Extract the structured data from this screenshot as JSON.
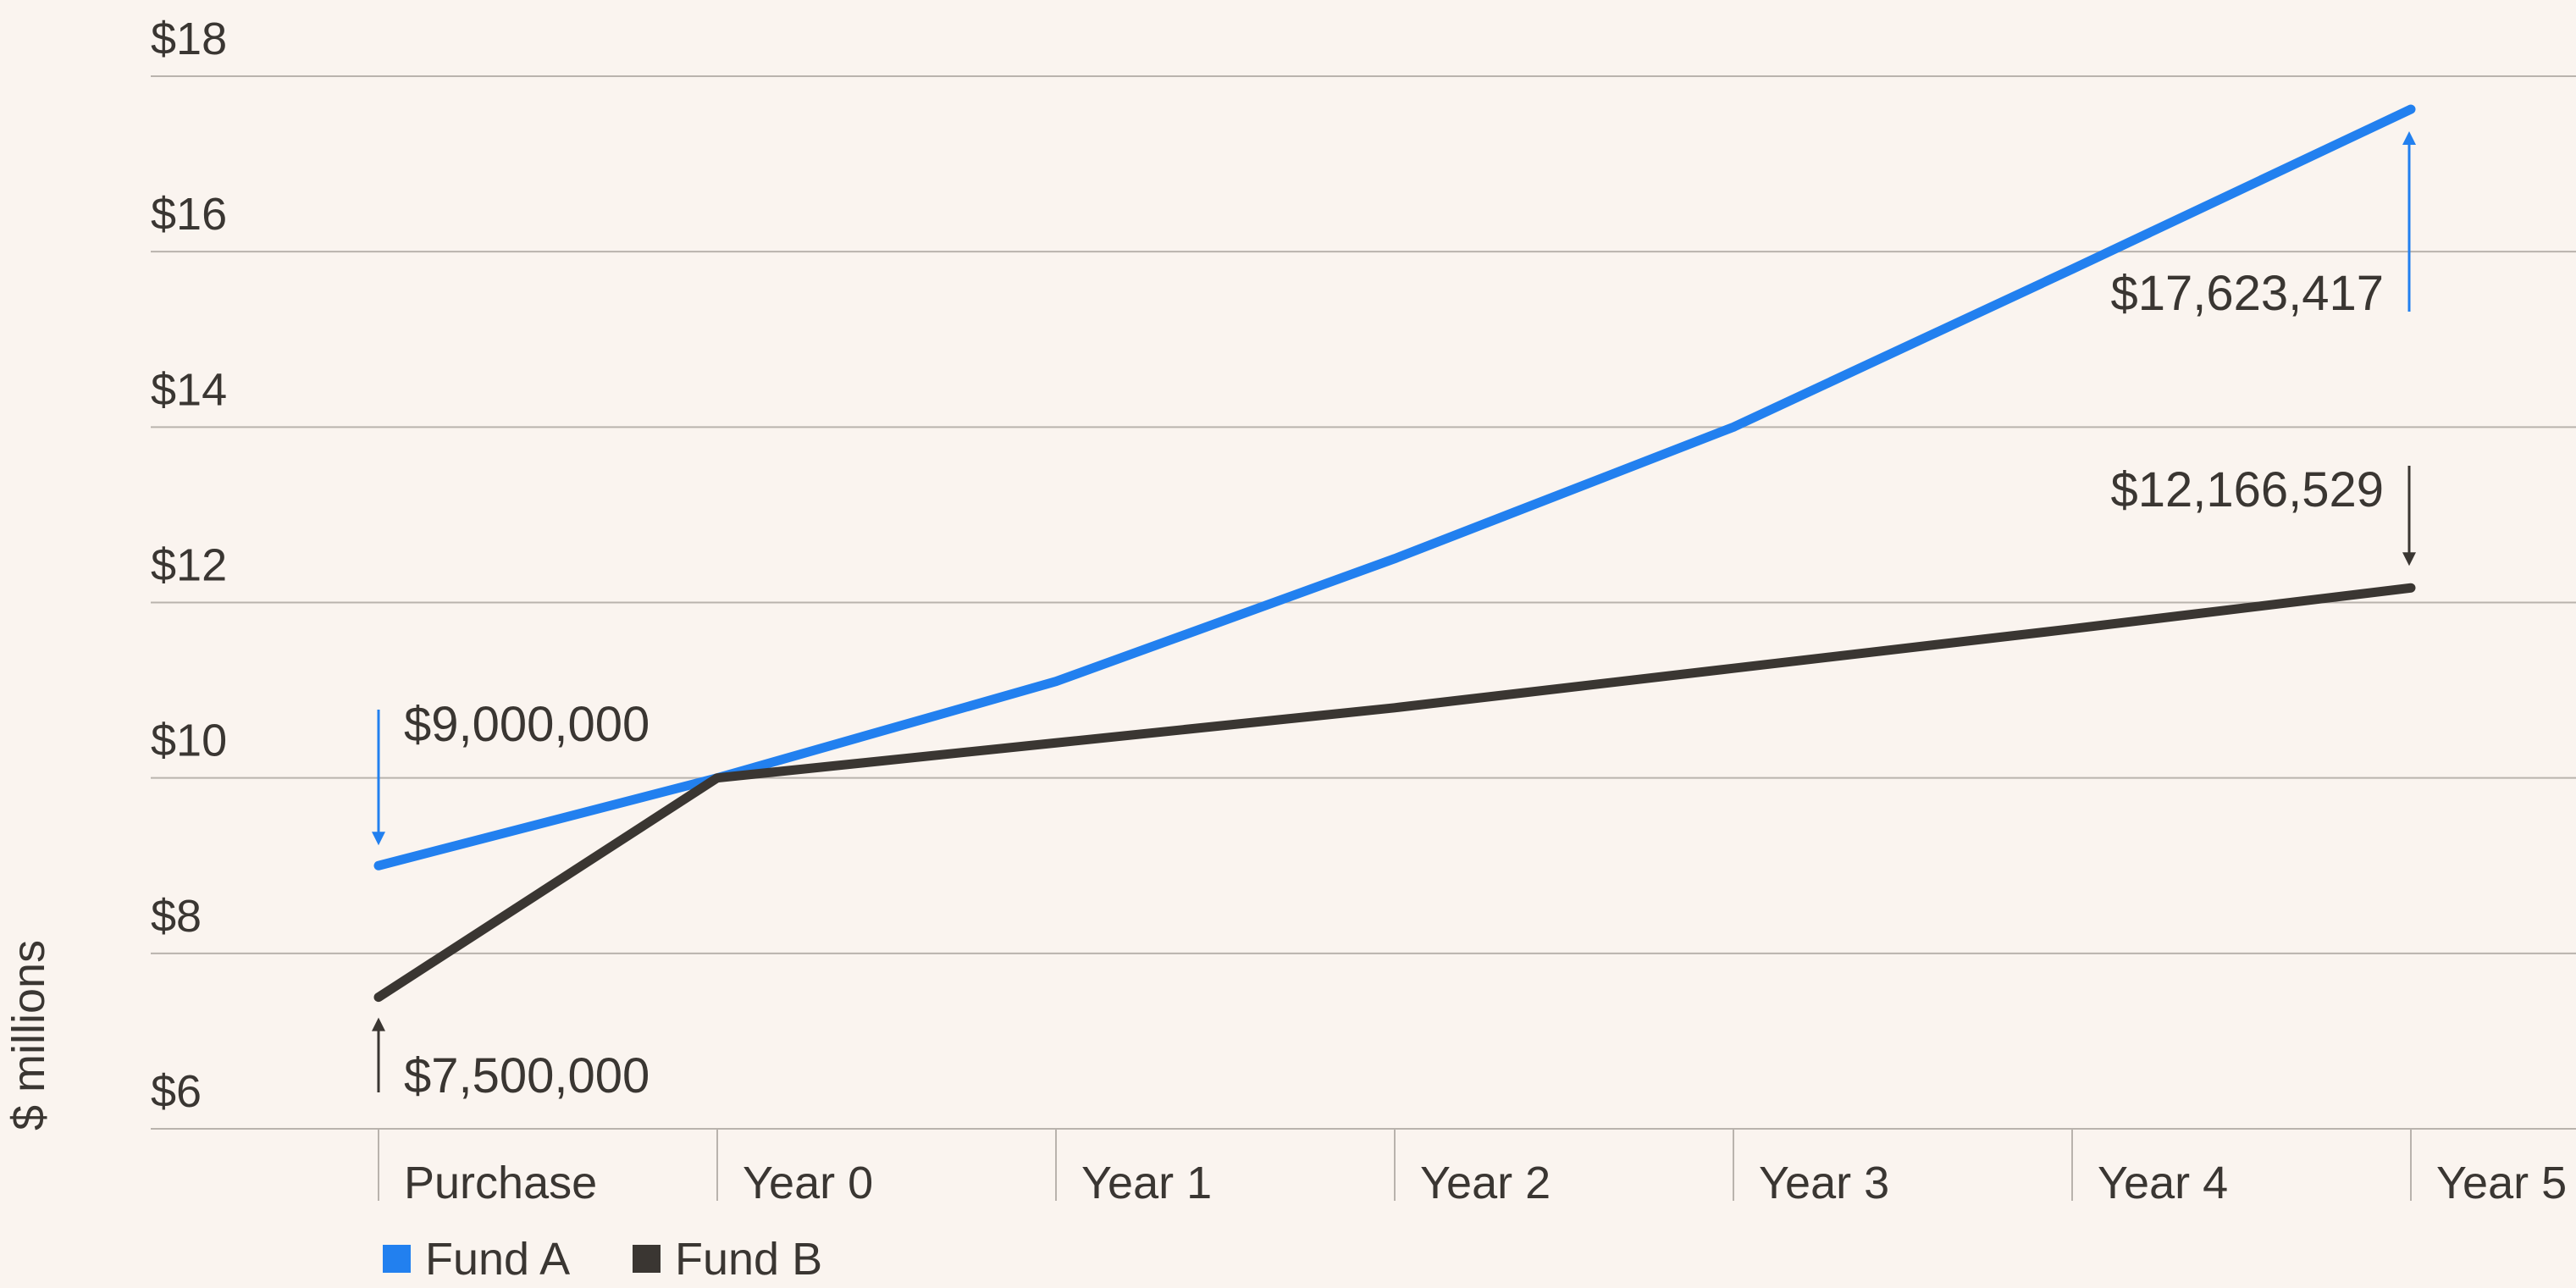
{
  "chart_data": {
    "type": "line",
    "categories": [
      "Purchase",
      "Year 0",
      "Year 1",
      "Year 2",
      "Year 3",
      "Year 4",
      "Year 5"
    ],
    "y_tick_labels": [
      "$6",
      "$8",
      "$10",
      "$12",
      "$14",
      "$16",
      "$18"
    ],
    "y_ticks": [
      6,
      8,
      10,
      12,
      14,
      16,
      18
    ],
    "ylim": [
      6,
      18
    ],
    "ylabel": "$ millions",
    "xlabel": "",
    "grid": true,
    "legend_position": "bottom-left",
    "series": [
      {
        "name": "Fund A",
        "color": "#2280ef",
        "values": [
          9.0,
          10.0,
          11.1,
          12.5,
          14.0,
          15.8,
          17.623417
        ]
      },
      {
        "name": "Fund B",
        "color": "#3a3632",
        "values": [
          7.5,
          10.0,
          10.4,
          10.8,
          11.25,
          11.7,
          12.166529
        ]
      }
    ],
    "annotations": [
      {
        "text": "$9,000,000",
        "series": 0,
        "point": 0,
        "color": "#2280ef",
        "arrow": "down"
      },
      {
        "text": "$7,500,000",
        "series": 1,
        "point": 0,
        "color": "#3a3632",
        "arrow": "up"
      },
      {
        "text": "$17,623,417",
        "series": 0,
        "point": 6,
        "color": "#2280ef",
        "arrow": "up"
      },
      {
        "text": "$12,166,529",
        "series": 1,
        "point": 6,
        "color": "#3a3632",
        "arrow": "down"
      }
    ]
  }
}
